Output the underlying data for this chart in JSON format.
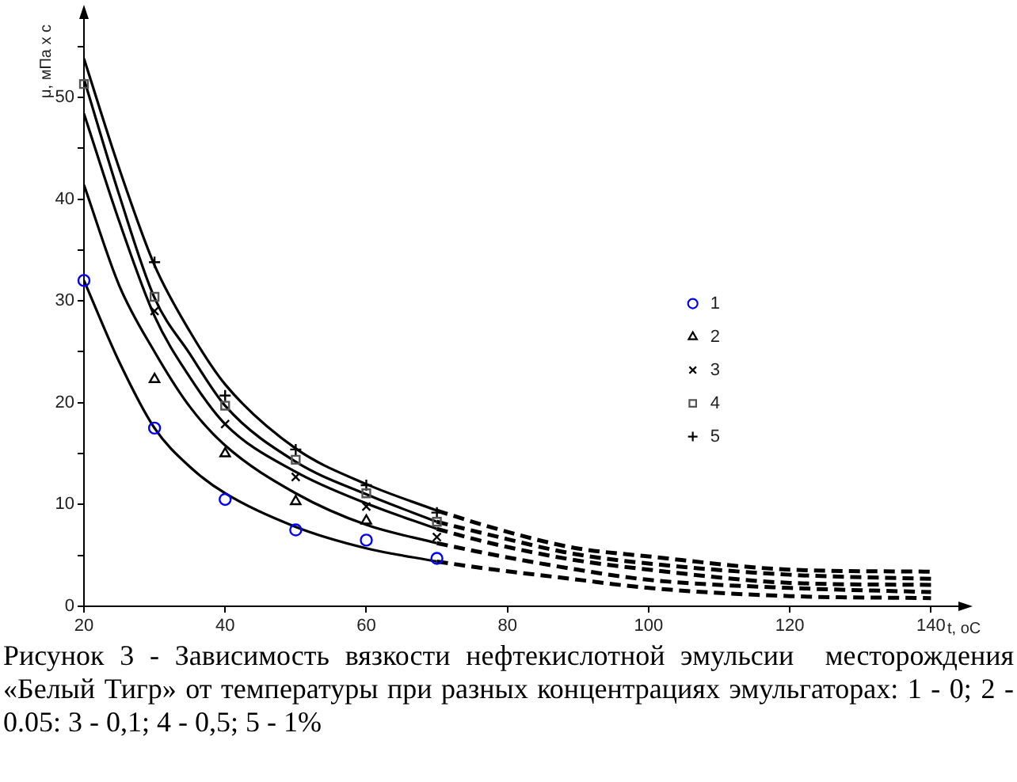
{
  "chart_data": {
    "type": "scatter",
    "xlabel": "t, oC",
    "ylabel": "μ, мПа х с",
    "annotations": [
      "Рисунок 3 - Зависимость вязкости нефтекислотной эмульсии  месторождения «Белый Тигр» от температуры при разных концентрациях эмульгаторах: 1 - 0; 2 - 0.05: 3 - 0,1; 4 - 0,5; 5 - 1%"
    ],
    "xlim": [
      20,
      145
    ],
    "ylim": [
      0,
      58
    ],
    "xticks": [
      20,
      40,
      60,
      80,
      100,
      120,
      140
    ],
    "yticks": [
      0,
      {
        "value": 5,
        "label": null
      },
      10,
      {
        "value": 15,
        "label": null
      },
      20,
      {
        "value": 25,
        "label": null
      },
      30,
      {
        "value": 35,
        "label": null
      },
      40,
      {
        "value": 45,
        "label": null
      },
      50,
      {
        "value": 55,
        "label": null
      }
    ],
    "legend": "right",
    "series": [
      {
        "name": "1",
        "marker": "circle",
        "color": "#0000ff",
        "x": [
          20,
          30,
          40,
          50,
          60,
          70
        ],
        "values": [
          32,
          17.5,
          10.5,
          7.5,
          6.5,
          4.7
        ]
      },
      {
        "name": "2",
        "marker": "triangle",
        "color": "#000000",
        "x": [
          30,
          40,
          50,
          60
        ],
        "values": [
          22.3,
          15,
          10.3,
          8.4
        ]
      },
      {
        "name": "3",
        "marker": "x",
        "color": "#000000",
        "x": [
          30,
          40,
          50,
          60,
          70
        ],
        "values": [
          29,
          17.9,
          12.7,
          9.8,
          6.8
        ]
      },
      {
        "name": "4",
        "marker": "square",
        "color": "#555555",
        "x": [
          20,
          30,
          40,
          50,
          60,
          70
        ],
        "values": [
          51.3,
          30.4,
          19.7,
          14.4,
          11.1,
          8.3
        ]
      },
      {
        "name": "5",
        "marker": "cross",
        "color": "#000000",
        "x": [
          30,
          40,
          50,
          60,
          70
        ],
        "values": [
          33.8,
          20.7,
          15.4,
          11.9,
          9.2
        ]
      },
      {
        "type": "line",
        "color": "#000000",
        "x": [
          20,
          25,
          30,
          35,
          40,
          50,
          60,
          70
        ],
        "values": [
          32,
          24,
          17.5,
          13.7,
          11.1,
          7.8,
          5.7,
          4.4
        ]
      },
      {
        "type": "line",
        "color": "#000000",
        "x": [
          20,
          25,
          30,
          35,
          40,
          50,
          60,
          70
        ],
        "values": [
          41.4,
          31.5,
          25,
          19.6,
          15.8,
          11.1,
          8,
          6.2
        ]
      },
      {
        "type": "line",
        "color": "#000000",
        "x": [
          20,
          25,
          30,
          35,
          40,
          50,
          60,
          70
        ],
        "values": [
          48.4,
          37.8,
          28.5,
          22.5,
          17.9,
          13.2,
          10.1,
          7.6
        ]
      },
      {
        "type": "line",
        "color": "#000000",
        "x": [
          20,
          25,
          30,
          35,
          40,
          50,
          60,
          70
        ],
        "values": [
          51.8,
          40.4,
          30.3,
          24.8,
          19.7,
          14.2,
          11,
          8.3
        ]
      },
      {
        "type": "line",
        "color": "#000000",
        "x": [
          20,
          25,
          30,
          35,
          40,
          50,
          60,
          70
        ],
        "values": [
          53.8,
          43,
          33.5,
          27,
          21.8,
          15.5,
          12,
          9.4
        ]
      },
      {
        "type": "line",
        "line_style": "dashed",
        "color": "#000000",
        "x": [
          70,
          77,
          89,
          100,
          120,
          140
        ],
        "values": [
          4.4,
          3.7,
          2.7,
          1.8,
          1,
          0.8
        ]
      },
      {
        "type": "line",
        "line_style": "dashed",
        "color": "#000000",
        "x": [
          70,
          77,
          89,
          100,
          120,
          140
        ],
        "values": [
          6.2,
          5.2,
          3.7,
          2.6,
          1.8,
          1.4
        ]
      },
      {
        "type": "line",
        "line_style": "dashed",
        "color": "#000000",
        "x": [
          70,
          77,
          89,
          100,
          120,
          140
        ],
        "values": [
          7.6,
          6.3,
          4.6,
          3.6,
          2.3,
          2.1
        ]
      },
      {
        "type": "line",
        "line_style": "dashed",
        "color": "#000000",
        "x": [
          70,
          77,
          89,
          100,
          120,
          140
        ],
        "values": [
          8.3,
          7.1,
          5.2,
          4.2,
          3.1,
          2.7
        ]
      },
      {
        "type": "line",
        "line_style": "dashed",
        "color": "#000000",
        "x": [
          70,
          77,
          89,
          100,
          120,
          140
        ],
        "values": [
          9.4,
          7.9,
          5.8,
          4.9,
          3.6,
          3.4
        ]
      }
    ]
  }
}
